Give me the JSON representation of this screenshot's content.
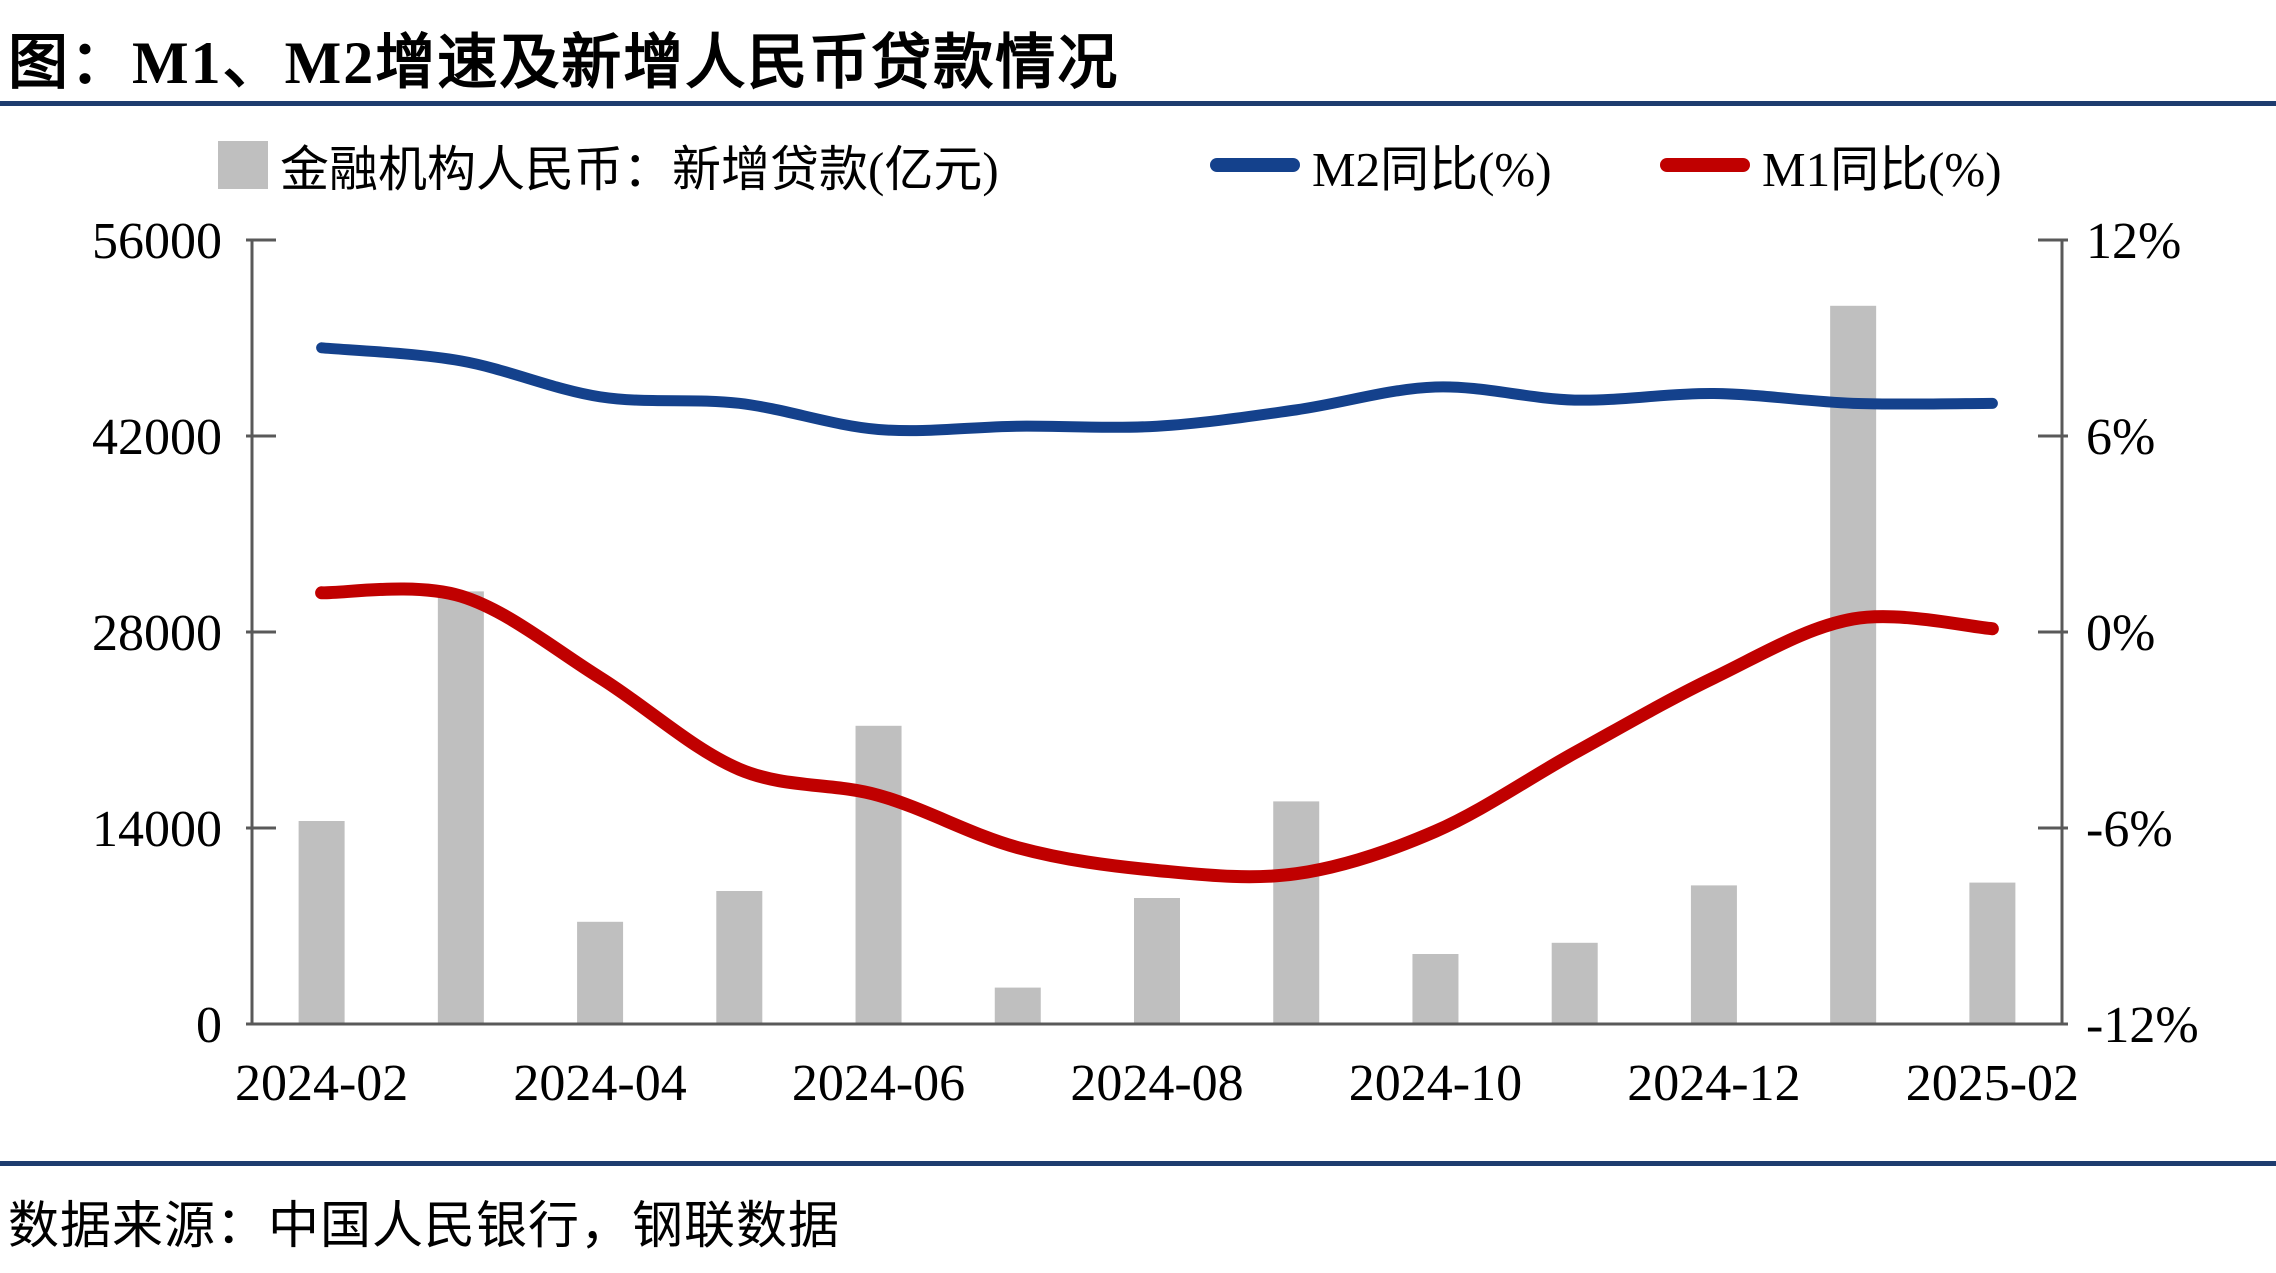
{
  "title": "图：M1、M2增速及新增人民币贷款情况",
  "source": "数据来源：中国人民银行，钢联数据",
  "colors": {
    "rule_navy": "#1e3c6f",
    "m2_blue": "#14418c",
    "m1_red": "#c00000",
    "bar_gray": "#bfbfbf",
    "axis_gray": "#595959"
  },
  "chart_data": {
    "type": "bar+line combo, dual axis",
    "categories": [
      "2024-02",
      "2024-03",
      "2024-04",
      "2024-05",
      "2024-06",
      "2024-07",
      "2024-08",
      "2024-09",
      "2024-10",
      "2024-11",
      "2024-12",
      "2025-01",
      "2025-02"
    ],
    "series": [
      {
        "name": "金融机构人民币：新增贷款(亿元)",
        "type": "bar",
        "axis": "left",
        "values": [
          14500,
          30900,
          7300,
          9500,
          21300,
          2600,
          9000,
          15900,
          5000,
          5800,
          9900,
          51300,
          10100
        ]
      },
      {
        "name": "M2同比(%)",
        "type": "line",
        "axis": "right",
        "values": [
          8.7,
          8.3,
          7.2,
          7.0,
          6.2,
          6.3,
          6.3,
          6.8,
          7.5,
          7.1,
          7.3,
          7.0,
          7.0
        ]
      },
      {
        "name": "M1同比(%)",
        "type": "line",
        "axis": "right",
        "values": [
          1.2,
          1.1,
          -1.4,
          -4.2,
          -5.0,
          -6.6,
          -7.3,
          -7.4,
          -6.1,
          -3.7,
          -1.4,
          0.4,
          0.1
        ]
      }
    ],
    "left_axis": {
      "min": 0,
      "max": 56000,
      "tick_values": [
        0,
        14000,
        28000,
        42000,
        56000
      ],
      "tick_labels": [
        "0",
        "14000",
        "28000",
        "42000",
        "56000"
      ]
    },
    "right_axis": {
      "min": -12,
      "max": 12,
      "tick_values": [
        -12,
        -6,
        0,
        6,
        12
      ],
      "tick_labels": [
        "-12%",
        "-6%",
        "0%",
        "6%",
        "12%"
      ]
    },
    "x_tick_indices": [
      0,
      2,
      4,
      6,
      8,
      10,
      12
    ],
    "x_tick_labels": [
      "2024-02",
      "2024-04",
      "2024-06",
      "2024-08",
      "2024-10",
      "2024-12",
      "2025-02"
    ],
    "grid": "off",
    "legend_position": "top"
  }
}
